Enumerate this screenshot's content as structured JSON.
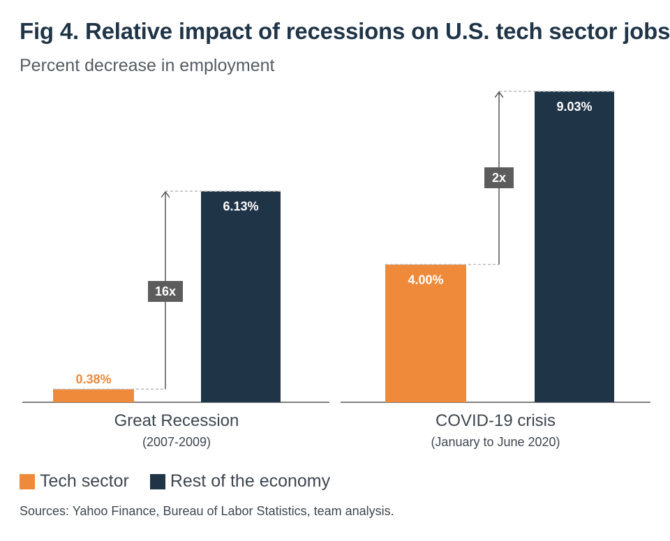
{
  "title": "Fig 4. Relative impact of recessions on U.S. tech sector jobs",
  "subtitle": "Percent decrease in employment",
  "colors": {
    "tech": "#ee8a3a",
    "rest": "#1f3447",
    "multiplier_box": "#5c5c5c"
  },
  "legend": [
    {
      "label": "Tech sector",
      "color": "#ee8a3a"
    },
    {
      "label": "Rest of the economy",
      "color": "#1f3447"
    }
  ],
  "source": "Sources: Yahoo Finance, Bureau of Labor Statistics, team analysis.",
  "chart_data": {
    "type": "bar",
    "categories": [
      "Great Recession",
      "COVID-19 crisis"
    ],
    "category_sublabels": [
      "(2007-2009)",
      "(January to June 2020)"
    ],
    "series": [
      {
        "name": "Tech sector",
        "values": [
          0.38,
          4.0
        ],
        "labels": [
          "0.38%",
          "4.00%"
        ]
      },
      {
        "name": "Rest of the economy",
        "values": [
          6.13,
          9.03
        ],
        "labels": [
          "6.13%",
          "9.03%"
        ]
      }
    ],
    "multipliers": [
      "16x",
      "2x"
    ],
    "ylim": [
      0,
      9.03
    ],
    "grid": false,
    "legend_position": "bottom-left"
  }
}
